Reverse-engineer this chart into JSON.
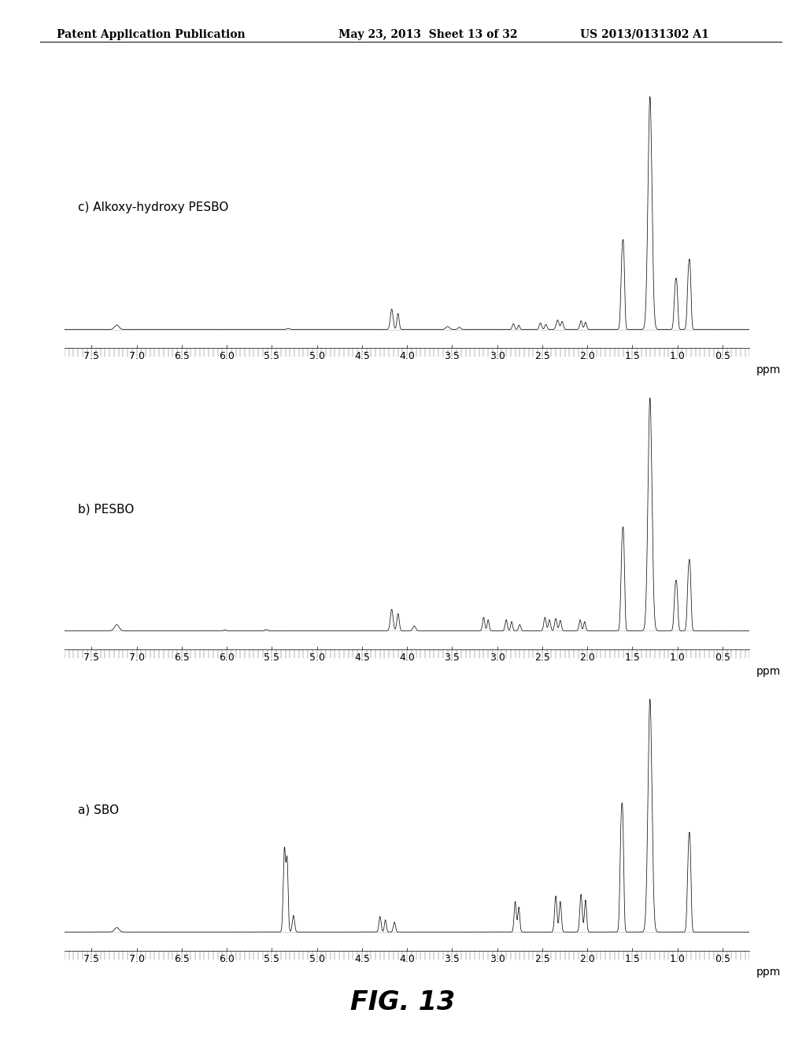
{
  "header_left": "Patent Application Publication",
  "header_center": "May 23, 2013  Sheet 13 of 32",
  "header_right": "US 2013/0131302 A1",
  "figure_label": "FIG. 13",
  "labels": [
    "c) Alkoxy-hydroxy PESBO",
    "b) PESBO",
    "a) SBO"
  ],
  "xaxis_ticks": [
    7.5,
    7.0,
    6.5,
    6.0,
    5.5,
    5.0,
    4.5,
    4.0,
    3.5,
    3.0,
    2.5,
    2.0,
    1.5,
    1.0,
    0.5
  ],
  "xaxis_label": "ppm",
  "xmin": 7.8,
  "xmax": 0.2,
  "background_color": "#ffffff",
  "line_color": "#111111",
  "header_fontsize": 10,
  "label_fontsize": 11,
  "tick_fontsize": 9,
  "fig_label_fontsize": 24
}
